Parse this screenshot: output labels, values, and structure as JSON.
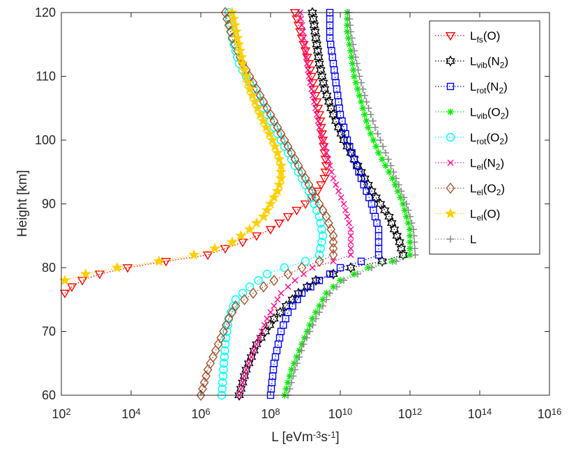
{
  "chart_data": {
    "type": "scatter",
    "title": "",
    "xlabel_parts": [
      {
        "t": "L [eVm"
      },
      {
        "t": "-3",
        "sup": true
      },
      {
        "t": "s"
      },
      {
        "t": "-1",
        "sup": true
      },
      {
        "t": "]"
      }
    ],
    "ylabel": "Height [km]",
    "xscale": "log",
    "xlim_exp": [
      2,
      16
    ],
    "ylim": [
      60,
      120
    ],
    "xticks_exp": [
      2,
      4,
      6,
      8,
      10,
      12,
      14,
      16
    ],
    "yticks": [
      60,
      70,
      80,
      90,
      100,
      110,
      120
    ],
    "grid": false,
    "legend_position": "top-right",
    "series": [
      {
        "name": "Lfs(O)",
        "label_parts": [
          {
            "t": "L"
          },
          {
            "t": "fs",
            "sub": true
          },
          {
            "t": "(O)"
          }
        ],
        "color": "#ff0000",
        "marker": "triangle-down",
        "points": [
          [
            120,
            8.7
          ],
          [
            116,
            8.9
          ],
          [
            112,
            9.1
          ],
          [
            108,
            9.25
          ],
          [
            104,
            9.4
          ],
          [
            100,
            9.5
          ],
          [
            96,
            9.6
          ],
          [
            94,
            9.55
          ],
          [
            92,
            9.35
          ],
          [
            90,
            9.0
          ],
          [
            88,
            8.5
          ],
          [
            86,
            8.0
          ],
          [
            84,
            7.2
          ],
          [
            82,
            6.2
          ],
          [
            81,
            5.0
          ],
          [
            80,
            3.9
          ],
          [
            79,
            3.1
          ],
          [
            78,
            2.6
          ],
          [
            77,
            2.3
          ],
          [
            76,
            2.1
          ]
        ]
      },
      {
        "name": "Lvib(N2)",
        "label_parts": [
          {
            "t": "L"
          },
          {
            "t": "vib",
            "sub": true
          },
          {
            "t": "(N"
          },
          {
            "t": "2",
            "sub": true
          },
          {
            "t": ")"
          }
        ],
        "color": "#000000",
        "marker": "hexagram",
        "points": [
          [
            60,
            7.1
          ],
          [
            64,
            7.3
          ],
          [
            68,
            7.6
          ],
          [
            72,
            8.1
          ],
          [
            76,
            8.8
          ],
          [
            78,
            9.3
          ],
          [
            80,
            10.3
          ],
          [
            81,
            11.2
          ],
          [
            82,
            11.8
          ],
          [
            84,
            11.7
          ],
          [
            88,
            11.4
          ],
          [
            92,
            10.9
          ],
          [
            96,
            10.5
          ],
          [
            100,
            10.1
          ],
          [
            104,
            9.8
          ],
          [
            108,
            9.55
          ],
          [
            112,
            9.4
          ],
          [
            116,
            9.3
          ],
          [
            120,
            9.2
          ]
        ]
      },
      {
        "name": "Lrot(N2)",
        "label_parts": [
          {
            "t": "L"
          },
          {
            "t": "rot",
            "sub": true
          },
          {
            "t": "(N"
          },
          {
            "t": "2",
            "sub": true
          },
          {
            "t": ")"
          }
        ],
        "color": "#0000ff",
        "marker": "square",
        "points": [
          [
            60,
            8.0
          ],
          [
            65,
            8.1
          ],
          [
            70,
            8.3
          ],
          [
            73,
            8.5
          ],
          [
            76,
            8.9
          ],
          [
            78,
            9.4
          ],
          [
            80,
            10.0
          ],
          [
            81,
            10.6
          ],
          [
            82,
            11.1
          ],
          [
            86,
            11.1
          ],
          [
            90,
            10.9
          ],
          [
            94,
            10.6
          ],
          [
            100,
            10.2
          ],
          [
            104,
            10.0
          ],
          [
            108,
            9.9
          ],
          [
            112,
            9.8
          ],
          [
            116,
            9.7
          ],
          [
            120,
            9.7
          ]
        ]
      },
      {
        "name": "Lvib(O2)",
        "label_parts": [
          {
            "t": "L"
          },
          {
            "t": "vib",
            "sub": true
          },
          {
            "t": "(O"
          },
          {
            "t": "2",
            "sub": true
          },
          {
            "t": ")"
          }
        ],
        "color": "#00ee00",
        "marker": "asterisk",
        "points": [
          [
            60,
            8.4
          ],
          [
            64,
            8.6
          ],
          [
            68,
            8.9
          ],
          [
            72,
            9.2
          ],
          [
            76,
            9.6
          ],
          [
            78,
            10.0
          ],
          [
            80,
            10.8
          ],
          [
            81,
            11.5
          ],
          [
            82,
            12.0
          ],
          [
            86,
            12.0
          ],
          [
            90,
            11.8
          ],
          [
            94,
            11.5
          ],
          [
            98,
            11.1
          ],
          [
            102,
            10.8
          ],
          [
            106,
            10.6
          ],
          [
            110,
            10.4
          ],
          [
            114,
            10.3
          ],
          [
            117,
            10.2
          ],
          [
            120,
            10.2
          ]
        ]
      },
      {
        "name": "Lrot(O2)",
        "label_parts": [
          {
            "t": "L"
          },
          {
            "t": "rot",
            "sub": true
          },
          {
            "t": "(O"
          },
          {
            "t": "2",
            "sub": true
          },
          {
            "t": ")"
          }
        ],
        "color": "#00ffff",
        "marker": "circle",
        "points": [
          [
            60,
            6.6
          ],
          [
            64,
            6.65
          ],
          [
            68,
            6.7
          ],
          [
            72,
            6.8
          ],
          [
            75,
            7.0
          ],
          [
            77,
            7.4
          ],
          [
            79,
            7.9
          ],
          [
            80,
            8.4
          ],
          [
            81,
            9.0
          ],
          [
            82,
            9.4
          ],
          [
            85,
            9.5
          ],
          [
            88,
            9.4
          ],
          [
            92,
            9.1
          ],
          [
            96,
            8.7
          ],
          [
            100,
            8.3
          ],
          [
            104,
            7.9
          ],
          [
            108,
            7.5
          ],
          [
            112,
            7.1
          ],
          [
            116,
            6.9
          ],
          [
            120,
            6.8
          ]
        ]
      },
      {
        "name": "Lel(N2)",
        "label_parts": [
          {
            "t": "L"
          },
          {
            "t": "el",
            "sub": true
          },
          {
            "t": "(N"
          },
          {
            "t": "2",
            "sub": true
          },
          {
            "t": ")"
          }
        ],
        "color": "#ff1493",
        "marker": "x",
        "points": [
          [
            60,
            7.1
          ],
          [
            64,
            7.3
          ],
          [
            68,
            7.6
          ],
          [
            72,
            7.9
          ],
          [
            76,
            8.3
          ],
          [
            78,
            8.7
          ],
          [
            80,
            9.2
          ],
          [
            81,
            9.8
          ],
          [
            82,
            10.3
          ],
          [
            86,
            10.3
          ],
          [
            90,
            10.1
          ],
          [
            94,
            9.8
          ],
          [
            98,
            9.6
          ],
          [
            102,
            9.4
          ],
          [
            106,
            9.25
          ],
          [
            110,
            9.1
          ],
          [
            114,
            9.0
          ],
          [
            118,
            8.9
          ],
          [
            120,
            8.85
          ]
        ]
      },
      {
        "name": "Lel(O2)",
        "label_parts": [
          {
            "t": "L"
          },
          {
            "t": "el",
            "sub": true
          },
          {
            "t": "(O"
          },
          {
            "t": "2",
            "sub": true
          },
          {
            "t": ")"
          }
        ],
        "color": "#a0522d",
        "marker": "diamond",
        "points": [
          [
            60,
            6.0
          ],
          [
            64,
            6.2
          ],
          [
            68,
            6.5
          ],
          [
            72,
            6.8
          ],
          [
            74,
            7.0
          ],
          [
            76,
            7.5
          ],
          [
            78,
            8.1
          ],
          [
            80,
            8.9
          ],
          [
            81,
            9.4
          ],
          [
            82,
            9.8
          ],
          [
            85,
            9.8
          ],
          [
            88,
            9.6
          ],
          [
            92,
            9.2
          ],
          [
            96,
            8.8
          ],
          [
            100,
            8.4
          ],
          [
            104,
            8.0
          ],
          [
            108,
            7.6
          ],
          [
            112,
            7.2
          ],
          [
            116,
            6.9
          ],
          [
            120,
            6.7
          ]
        ]
      },
      {
        "name": "Lel(O)",
        "label_parts": [
          {
            "t": "L"
          },
          {
            "t": "el",
            "sub": true
          },
          {
            "t": "(O)"
          }
        ],
        "color": "#ffd000",
        "marker": "pentagram",
        "points": [
          [
            78,
            2.1
          ],
          [
            79,
            2.7
          ],
          [
            80,
            3.6
          ],
          [
            81,
            4.8
          ],
          [
            82,
            5.8
          ],
          [
            83,
            6.4
          ],
          [
            84,
            6.9
          ],
          [
            86,
            7.4
          ],
          [
            88,
            7.8
          ],
          [
            90,
            8.0
          ],
          [
            92,
            8.2
          ],
          [
            94,
            8.3
          ],
          [
            96,
            8.3
          ],
          [
            98,
            8.2
          ],
          [
            100,
            8.05
          ],
          [
            104,
            7.7
          ],
          [
            108,
            7.4
          ],
          [
            112,
            7.2
          ],
          [
            116,
            7.05
          ],
          [
            120,
            6.9
          ]
        ]
      },
      {
        "name": "L",
        "label_parts": [
          {
            "t": "L"
          }
        ],
        "color": "#888888",
        "marker": "plus",
        "points": [
          [
            60,
            8.5
          ],
          [
            64,
            8.7
          ],
          [
            68,
            8.95
          ],
          [
            72,
            9.3
          ],
          [
            76,
            9.7
          ],
          [
            78,
            10.1
          ],
          [
            80,
            10.9
          ],
          [
            81,
            11.6
          ],
          [
            82,
            12.15
          ],
          [
            86,
            12.1
          ],
          [
            90,
            11.9
          ],
          [
            94,
            11.6
          ],
          [
            98,
            11.3
          ],
          [
            102,
            11.0
          ],
          [
            106,
            10.75
          ],
          [
            110,
            10.55
          ],
          [
            114,
            10.4
          ],
          [
            117,
            10.3
          ],
          [
            120,
            10.25
          ]
        ]
      }
    ]
  }
}
